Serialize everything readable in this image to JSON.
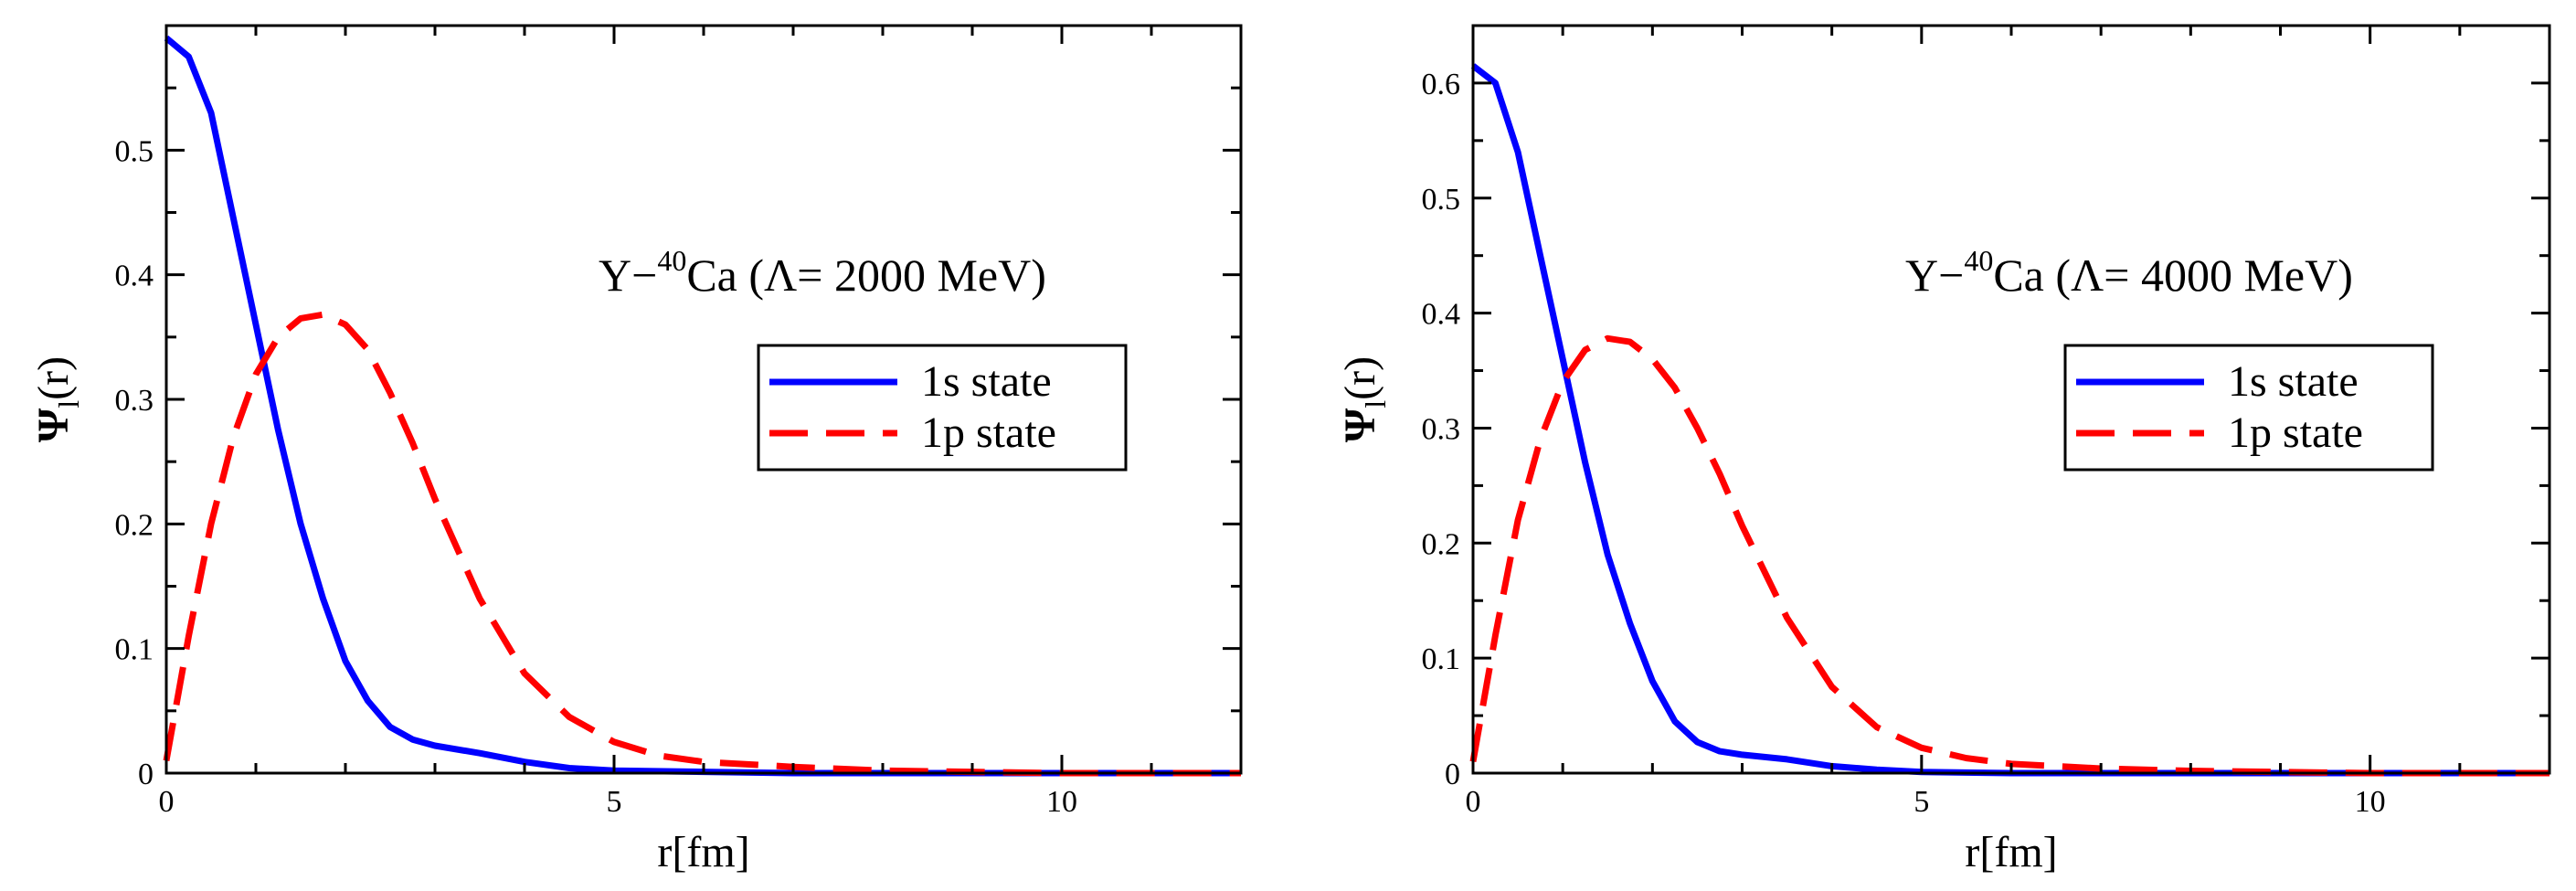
{
  "chart_data": [
    {
      "type": "line",
      "xlabel": "r[fm]",
      "ylabel_main": "Ψ",
      "ylabel_sub": "l",
      "ylabel_tail": "(r)",
      "annotation": {
        "prefix": "Y−",
        "sup": "40",
        "rest": "Ca (Λ= 2000 MeV)"
      },
      "xlim": [
        0,
        12
      ],
      "ylim": [
        0,
        0.6
      ],
      "xticks": [
        0,
        5,
        10
      ],
      "xtick_labels": [
        "0",
        "5",
        "10"
      ],
      "yticks": [
        0,
        0.1,
        0.2,
        0.3,
        0.4,
        0.5
      ],
      "ytick_labels": [
        "0",
        "0.1",
        "0.2",
        "0.3",
        "0.4",
        "0.5"
      ],
      "grid": false,
      "legend_position": "right",
      "series": [
        {
          "name": "1s state",
          "color": "#0000ff",
          "dash": "solid",
          "x": [
            0,
            0.25,
            0.5,
            0.75,
            1.0,
            1.25,
            1.5,
            1.75,
            2.0,
            2.25,
            2.5,
            2.75,
            3.0,
            3.5,
            4.0,
            4.5,
            5.0,
            6.0,
            7.0,
            8.0,
            10.0,
            12.0
          ],
          "y": [
            0.59,
            0.575,
            0.53,
            0.445,
            0.36,
            0.275,
            0.2,
            0.14,
            0.09,
            0.058,
            0.037,
            0.027,
            0.022,
            0.016,
            0.009,
            0.004,
            0.002,
            0.001,
            0.0,
            0.0,
            0.0,
            0.0
          ]
        },
        {
          "name": "1p state",
          "color": "#ff0000",
          "dash": "dashed",
          "x": [
            0,
            0.25,
            0.5,
            0.75,
            1.0,
            1.25,
            1.5,
            1.75,
            2.0,
            2.25,
            2.5,
            2.75,
            3.0,
            3.5,
            4.0,
            4.5,
            5.0,
            5.5,
            6.0,
            7.0,
            8.0,
            10.0,
            12.0
          ],
          "y": [
            0.01,
            0.11,
            0.2,
            0.27,
            0.32,
            0.35,
            0.365,
            0.368,
            0.36,
            0.34,
            0.305,
            0.265,
            0.22,
            0.14,
            0.08,
            0.045,
            0.025,
            0.014,
            0.009,
            0.005,
            0.002,
            0.0,
            0.0
          ]
        }
      ]
    },
    {
      "type": "line",
      "xlabel": "r[fm]",
      "ylabel_main": "Ψ",
      "ylabel_sub": "l",
      "ylabel_tail": "(r)",
      "annotation": {
        "prefix": "Y−",
        "sup": "40",
        "rest": "Ca (Λ= 4000 MeV)"
      },
      "xlim": [
        0,
        12
      ],
      "ylim": [
        0,
        0.65
      ],
      "xticks": [
        0,
        5,
        10
      ],
      "xtick_labels": [
        "0",
        "5",
        "10"
      ],
      "yticks": [
        0,
        0.1,
        0.2,
        0.3,
        0.4,
        0.5,
        0.6
      ],
      "ytick_labels": [
        "0",
        "0.1",
        "0.2",
        "0.3",
        "0.4",
        "0.5",
        "0.6"
      ],
      "grid": false,
      "legend_position": "right",
      "series": [
        {
          "name": "1s state",
          "color": "#0000ff",
          "dash": "solid",
          "x": [
            0,
            0.25,
            0.5,
            0.75,
            1.0,
            1.25,
            1.5,
            1.75,
            2.0,
            2.25,
            2.5,
            2.75,
            3.0,
            3.5,
            4.0,
            4.5,
            5.0,
            6.0,
            7.0,
            8.0,
            10.0,
            12.0
          ],
          "y": [
            0.615,
            0.6,
            0.54,
            0.45,
            0.36,
            0.27,
            0.19,
            0.13,
            0.08,
            0.045,
            0.027,
            0.019,
            0.016,
            0.012,
            0.006,
            0.003,
            0.001,
            0.0,
            0.0,
            0.0,
            0.0,
            0.0
          ]
        },
        {
          "name": "1p state",
          "color": "#ff0000",
          "dash": "dashed",
          "x": [
            0,
            0.25,
            0.5,
            0.75,
            1.0,
            1.25,
            1.5,
            1.75,
            2.0,
            2.25,
            2.5,
            2.75,
            3.0,
            3.5,
            4.0,
            4.5,
            5.0,
            5.5,
            6.0,
            7.0,
            8.0,
            10.0,
            12.0
          ],
          "y": [
            0.01,
            0.12,
            0.22,
            0.29,
            0.34,
            0.368,
            0.378,
            0.375,
            0.36,
            0.335,
            0.3,
            0.26,
            0.215,
            0.135,
            0.075,
            0.04,
            0.022,
            0.013,
            0.008,
            0.004,
            0.002,
            0.0,
            0.0
          ]
        }
      ]
    }
  ]
}
